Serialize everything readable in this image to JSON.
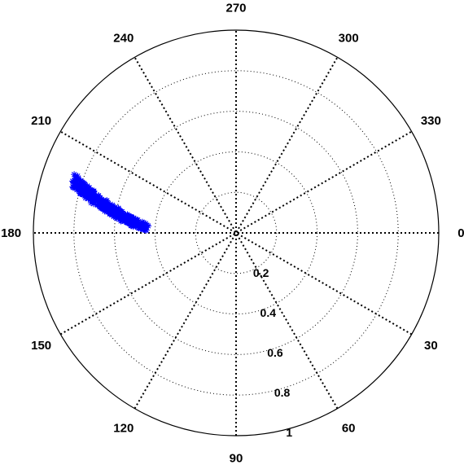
{
  "chart_data": {
    "type": "scatter",
    "coordinate_system": "polar",
    "angle_unit": "degrees",
    "angle_direction": "clockwise",
    "angle_zero": "right",
    "marker": "asterisk",
    "marker_color": "#0000ff",
    "grid": true,
    "rlim": [
      0,
      1
    ],
    "theta_ticks": [
      "0",
      "30",
      "60",
      "90",
      "120",
      "150",
      "180",
      "210",
      "240",
      "270",
      "300",
      "330"
    ],
    "r_ticks": [
      "0.2",
      "0.4",
      "0.6",
      "0.8",
      "1"
    ],
    "cluster": {
      "description_points": [
        {
          "theta": 198,
          "r": 0.84
        },
        {
          "theta": 196.5,
          "r": 0.8
        },
        {
          "theta": 195.5,
          "r": 0.76
        },
        {
          "theta": 194,
          "r": 0.73
        },
        {
          "theta": 193,
          "r": 0.69
        },
        {
          "theta": 191.5,
          "r": 0.66
        },
        {
          "theta": 190.5,
          "r": 0.62
        },
        {
          "theta": 189,
          "r": 0.59
        },
        {
          "theta": 187.5,
          "r": 0.55
        },
        {
          "theta": 186,
          "r": 0.51
        },
        {
          "theta": 184.5,
          "r": 0.47
        },
        {
          "theta": 183,
          "r": 0.44
        }
      ],
      "theta_spread": 2.2,
      "r_spread": 0.012
    }
  }
}
